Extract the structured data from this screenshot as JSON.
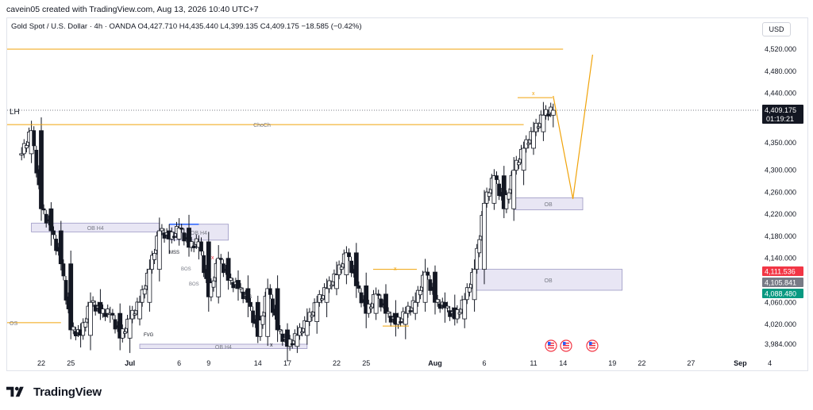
{
  "header": {
    "created_line": "cavein05 created with TradingView.com, Aug 13, 2026 10:40 UTC+7"
  },
  "symbol": {
    "name": "Gold Spot / U.S. Dollar · 4h · OANDA",
    "open": "O4,427.710",
    "high": "H4,435.440",
    "low": "L4,399.135",
    "close": "C4,409.175",
    "change": "−18.585 (−0.42%)"
  },
  "currency_button": "USD",
  "colors": {
    "up": "#089981",
    "down": "#f23645",
    "candle": "#131722",
    "orange": "#f0a30a",
    "zone_fill": "#e8e6f4",
    "zone_border": "#9c98c4",
    "price_label_red": "#f23645",
    "price_label_grey": "#787b86",
    "price_label_green": "#089981",
    "price_label_black": "#131722"
  },
  "chart_data": {
    "type": "candlestick",
    "timeframe": "4h",
    "ylim": [
      3960,
      4560
    ],
    "y_ticks": [
      "4,520.000",
      "4,480.000",
      "4,440.000",
      "4,350.000",
      "4,300.000",
      "4,260.000",
      "4,220.000",
      "4,180.000",
      "4,140.000",
      "4,060.000",
      "4,020.000",
      "3,984.000"
    ],
    "x_ticks": [
      "22",
      "25",
      "Jul",
      "6",
      "9",
      "14",
      "17",
      "22",
      "25",
      "Aug",
      "6",
      "11",
      "14",
      "19",
      "22",
      "27",
      "Sep",
      "4"
    ],
    "last_price": "4,409.175",
    "countdown": "01:19:21",
    "price_labels": [
      {
        "text": "4,111.536",
        "color": "red"
      },
      {
        "text": "4,105.841",
        "color": "grey"
      },
      {
        "text": "4,088.480",
        "color": "green"
      }
    ],
    "close_path": [
      {
        "x": "Jun 20",
        "y": 4330
      },
      {
        "x": "Jun 21",
        "y": 4372
      },
      {
        "x": "Jun 22",
        "y": 4230
      },
      {
        "x": "Jun 23",
        "y": 4190
      },
      {
        "x": "Jun 24",
        "y": 4130
      },
      {
        "x": "Jun 25",
        "y": 4010
      },
      {
        "x": "Jun 26",
        "y": 4000
      },
      {
        "x": "Jun 27",
        "y": 4060
      },
      {
        "x": "Jun 28",
        "y": 4040
      },
      {
        "x": "Jun 29",
        "y": 4040
      },
      {
        "x": "Jun 30",
        "y": 3995
      },
      {
        "x": "Jul 1",
        "y": 4030
      },
      {
        "x": "Jul 2",
        "y": 4060
      },
      {
        "x": "Jul 3",
        "y": 4120
      },
      {
        "x": "Jul 4",
        "y": 4190
      },
      {
        "x": "Jul 5",
        "y": 4175
      },
      {
        "x": "Jul 6",
        "y": 4195
      },
      {
        "x": "Jul 7",
        "y": 4160
      },
      {
        "x": "Jul 8",
        "y": 4170
      },
      {
        "x": "Jul 9",
        "y": 4070
      },
      {
        "x": "Jul 10",
        "y": 4140
      },
      {
        "x": "Jul 11",
        "y": 4100
      },
      {
        "x": "Jul 12",
        "y": 4085
      },
      {
        "x": "Jul 13",
        "y": 4060
      },
      {
        "x": "Jul 14",
        "y": 3998
      },
      {
        "x": "Jul 15",
        "y": 4085
      },
      {
        "x": "Jul 16",
        "y": 4010
      },
      {
        "x": "Jul 17",
        "y": 3980
      },
      {
        "x": "Jul 18",
        "y": 4000
      },
      {
        "x": "Jul 19",
        "y": 4025
      },
      {
        "x": "Jul 20",
        "y": 4060
      },
      {
        "x": "Jul 21",
        "y": 4085
      },
      {
        "x": "Jul 22",
        "y": 4110
      },
      {
        "x": "Jul 23",
        "y": 4150
      },
      {
        "x": "Jul 24",
        "y": 4090
      },
      {
        "x": "Jul 25",
        "y": 4040
      },
      {
        "x": "Jul 26",
        "y": 4075
      },
      {
        "x": "Jul 27",
        "y": 4040
      },
      {
        "x": "Jul 28",
        "y": 4020
      },
      {
        "x": "Jul 29",
        "y": 4040
      },
      {
        "x": "Jul 30",
        "y": 4060
      },
      {
        "x": "Jul 31",
        "y": 4115
      },
      {
        "x": "Aug 1",
        "y": 4060
      },
      {
        "x": "Aug 2",
        "y": 4050
      },
      {
        "x": "Aug 3",
        "y": 4030
      },
      {
        "x": "Aug 4",
        "y": 4065
      },
      {
        "x": "Aug 5",
        "y": 4120
      },
      {
        "x": "Aug 6",
        "y": 4240
      },
      {
        "x": "Aug 7",
        "y": 4290
      },
      {
        "x": "Aug 8",
        "y": 4230
      },
      {
        "x": "Aug 9",
        "y": 4300
      },
      {
        "x": "Aug 10",
        "y": 4340
      },
      {
        "x": "Aug 11",
        "y": 4370
      },
      {
        "x": "Aug 12",
        "y": 4400
      },
      {
        "x": "Aug 13",
        "y": 4409
      }
    ],
    "annotations": {
      "lh_label": "LH",
      "choch_label": "ChoCh",
      "ob_h4_left": "OB H4",
      "ob_h4_mid": "OB H4",
      "ob_h4_bottom": "OB H4",
      "ob_right_upper": "OB",
      "ob_right_lower": "OB",
      "bos_1": "BOS",
      "bos_2": "BOS",
      "mss": "MSS",
      "fvg": "FVG",
      "os": "OS",
      "small_s": "S",
      "x_mark": "x",
      "choch_level": 4383,
      "top_line_level": 4520,
      "os_level": 4023,
      "projection": [
        {
          "x": "Aug 13",
          "y": 4435
        },
        {
          "x": "Aug 15",
          "y": 4248
        },
        {
          "x": "Aug 17",
          "y": 4510
        }
      ]
    }
  }
}
